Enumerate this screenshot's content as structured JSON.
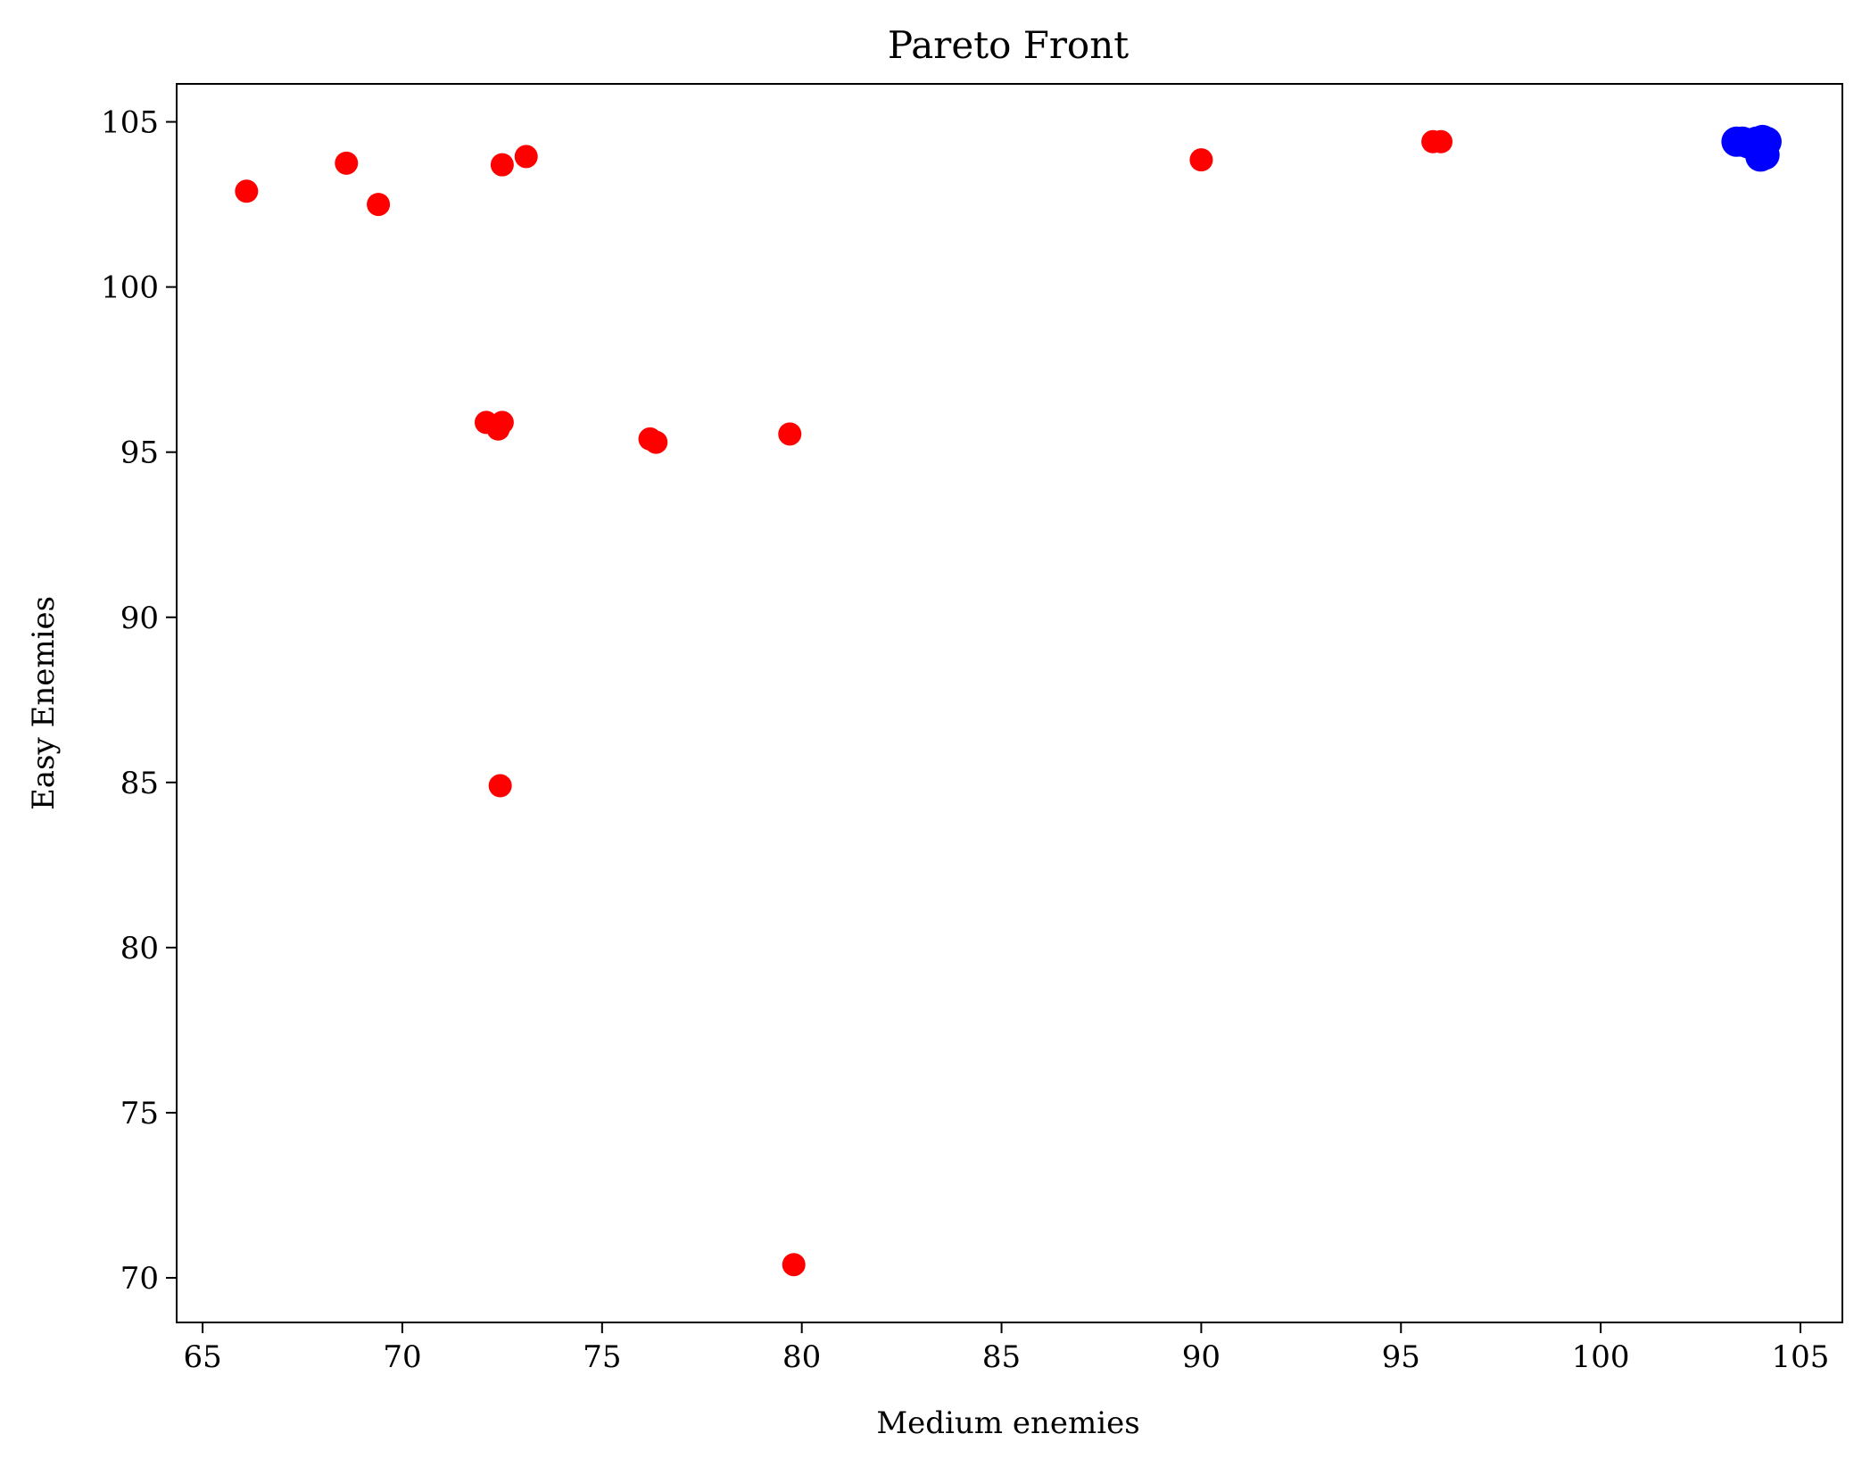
{
  "chart_data": {
    "type": "scatter",
    "title": "Pareto Front",
    "xlabel": "Medium enemies",
    "ylabel": "Easy Enemies",
    "xlim": [
      64.35,
      106.05
    ],
    "ylim": [
      68.65,
      106.15
    ],
    "xticks": [
      65,
      70,
      75,
      80,
      85,
      90,
      95,
      100,
      105
    ],
    "yticks": [
      70,
      75,
      80,
      85,
      90,
      95,
      100,
      105
    ],
    "grid": false,
    "series": [
      {
        "color": "#ff0000",
        "marker_size": "small",
        "points": [
          [
            66.1,
            102.9
          ],
          [
            68.6,
            103.75
          ],
          [
            69.4,
            102.5
          ],
          [
            72.5,
            103.7
          ],
          [
            73.1,
            103.95
          ],
          [
            90.0,
            103.85
          ],
          [
            95.8,
            104.4
          ],
          [
            96.0,
            104.4
          ],
          [
            72.1,
            95.9
          ],
          [
            72.5,
            95.9
          ],
          [
            72.4,
            95.7
          ],
          [
            76.2,
            95.4
          ],
          [
            76.35,
            95.3
          ],
          [
            79.7,
            95.55
          ],
          [
            72.45,
            84.9
          ],
          [
            79.8,
            70.4
          ]
        ]
      },
      {
        "color": "#0000ff",
        "marker_size": "large",
        "points": [
          [
            103.4,
            104.4
          ],
          [
            103.55,
            104.4
          ],
          [
            103.7,
            104.35
          ],
          [
            103.9,
            104.4
          ],
          [
            104.05,
            104.45
          ],
          [
            104.15,
            104.4
          ],
          [
            104.1,
            104.0
          ],
          [
            104.0,
            103.95
          ]
        ]
      }
    ]
  }
}
